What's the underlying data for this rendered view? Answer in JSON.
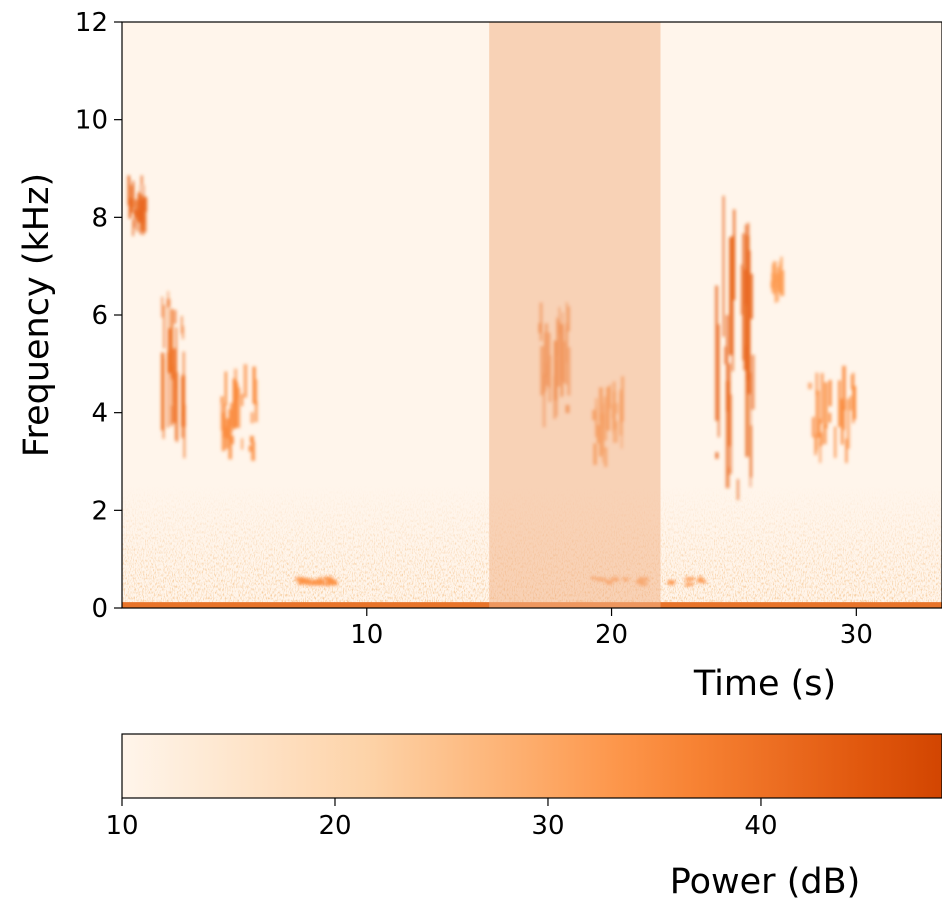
{
  "chart_data": [
    {
      "type": "heatmap",
      "subtype": "spectrogram",
      "xlabel": "Time (s)",
      "ylabel": "Frequency (kHz)",
      "xlim": [
        0,
        33.5
      ],
      "ylim": [
        0,
        12
      ],
      "xticks": [
        10,
        20,
        30
      ],
      "yticks": [
        0,
        2,
        4,
        6,
        8,
        10,
        12
      ],
      "colormap": "Oranges",
      "highlight_region": {
        "x_start": 15.0,
        "x_end": 22.0,
        "color": "#f2b48a"
      },
      "events": [
        {
          "t_start": 0.2,
          "t_end": 1.0,
          "f_low": 7.6,
          "f_high": 8.9,
          "power_db": 42
        },
        {
          "t_start": 1.4,
          "t_end": 2.6,
          "f_low": 3.0,
          "f_high": 6.5,
          "power_db": 40
        },
        {
          "t_start": 4.0,
          "t_end": 5.6,
          "f_low": 2.9,
          "f_high": 5.0,
          "power_db": 36
        },
        {
          "t_start": 17.0,
          "t_end": 18.3,
          "f_low": 3.6,
          "f_high": 6.4,
          "power_db": 40
        },
        {
          "t_start": 19.2,
          "t_end": 20.6,
          "f_low": 2.8,
          "f_high": 4.8,
          "power_db": 36
        },
        {
          "t_start": 24.2,
          "t_end": 25.8,
          "f_low": 2.2,
          "f_high": 8.8,
          "power_db": 42
        },
        {
          "t_start": 26.5,
          "t_end": 27.0,
          "f_low": 6.2,
          "f_high": 7.2,
          "power_db": 32
        },
        {
          "t_start": 28.0,
          "t_end": 30.0,
          "f_low": 2.9,
          "f_high": 5.0,
          "power_db": 36
        },
        {
          "t_start": 7.0,
          "t_end": 9.0,
          "f_low": 0.45,
          "f_high": 0.65,
          "power_db": 34
        },
        {
          "t_start": 19.0,
          "t_end": 24.0,
          "f_low": 0.45,
          "f_high": 0.65,
          "power_db": 34
        }
      ],
      "noise_floor": {
        "f_high": 2.5,
        "power_db": 30
      }
    },
    {
      "type": "colorbar",
      "label": "Power (dB)",
      "xlim": [
        10,
        48.5
      ],
      "ticks": [
        10,
        20,
        30,
        40
      ]
    }
  ]
}
